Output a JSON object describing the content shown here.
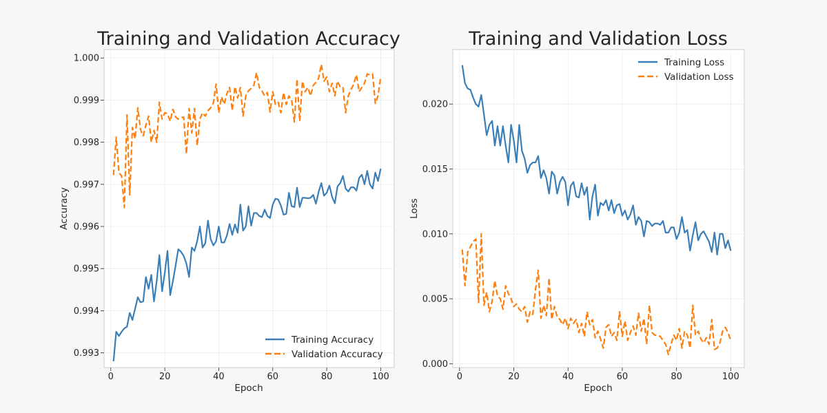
{
  "chart_data": [
    {
      "type": "line",
      "title": "Training and Validation Accuracy",
      "xlabel": "Epoch",
      "ylabel": "Accuracy",
      "xlim": [
        -2.5,
        105
      ],
      "ylim": [
        0.99265,
        1.0002
      ],
      "xticks": [
        0,
        20,
        40,
        60,
        80,
        100
      ],
      "xtick_labels": [
        "0",
        "20",
        "40",
        "60",
        "80",
        "100"
      ],
      "yticks": [
        0.993,
        0.994,
        0.995,
        0.996,
        0.997,
        0.998,
        0.999,
        1.0
      ],
      "ytick_labels": [
        "0.993",
        "0.994",
        "0.995",
        "0.996",
        "0.997",
        "0.998",
        "0.999",
        "1.000"
      ],
      "grid": true,
      "legend_position": "lower-right",
      "series": [
        {
          "name": "Training Accuracy",
          "color": "#3a7eb8",
          "style": "solid",
          "x": [
            1,
            2,
            3,
            4,
            5,
            6,
            7,
            8,
            9,
            10,
            11,
            12,
            13,
            14,
            15,
            16,
            17,
            18,
            19,
            20,
            21,
            22,
            23,
            24,
            25,
            26,
            27,
            28,
            29,
            30,
            31,
            32,
            33,
            34,
            35,
            36,
            37,
            38,
            39,
            40,
            41,
            42,
            43,
            44,
            45,
            46,
            47,
            48,
            49,
            50,
            51,
            52,
            53,
            54,
            55,
            56,
            57,
            58,
            59,
            60,
            61,
            62,
            63,
            64,
            65,
            66,
            67,
            68,
            69,
            70,
            71,
            72,
            73,
            74,
            75,
            76,
            77,
            78,
            79,
            80,
            81,
            82,
            83,
            84,
            85,
            86,
            87,
            88,
            89,
            90,
            91,
            92,
            93,
            94,
            95,
            96,
            97,
            98,
            99,
            100
          ],
          "values": [
            0.9928,
            0.9935,
            0.9934,
            0.9935,
            0.99358,
            0.99362,
            0.99395,
            0.99378,
            0.99405,
            0.99432,
            0.9942,
            0.99422,
            0.9948,
            0.99452,
            0.99485,
            0.99422,
            0.9947,
            0.99532,
            0.99446,
            0.9949,
            0.99542,
            0.99437,
            0.9947,
            0.99507,
            0.99546,
            0.9954,
            0.9953,
            0.99512,
            0.9948,
            0.9955,
            0.99542,
            0.99565,
            0.996,
            0.9955,
            0.9956,
            0.99614,
            0.9957,
            0.99555,
            0.99565,
            0.996,
            0.99562,
            0.99562,
            0.99578,
            0.99606,
            0.9958,
            0.99605,
            0.99585,
            0.99652,
            0.9959,
            0.996,
            0.99648,
            0.99602,
            0.99632,
            0.99632,
            0.99625,
            0.99622,
            0.9964,
            0.99625,
            0.9962,
            0.99652,
            0.99666,
            0.99664,
            0.9965,
            0.99628,
            0.9963,
            0.9968,
            0.99648,
            0.99646,
            0.99692,
            0.99646,
            0.99668,
            0.99668,
            0.99667,
            0.99668,
            0.99675,
            0.99654,
            0.99682,
            0.99703,
            0.99673,
            0.9968,
            0.99697,
            0.9967,
            0.99655,
            0.99695,
            0.99703,
            0.9972,
            0.9969,
            0.99683,
            0.99693,
            0.99693,
            0.99685,
            0.99715,
            0.99723,
            0.997,
            0.99732,
            0.997,
            0.9969,
            0.99728,
            0.99708,
            0.99737
          ]
        },
        {
          "name": "Validation Accuracy",
          "color": "#ff7f0e",
          "style": "dashed",
          "x": [
            1,
            2,
            3,
            4,
            5,
            6,
            7,
            8,
            9,
            10,
            11,
            12,
            13,
            14,
            15,
            16,
            17,
            18,
            19,
            20,
            21,
            22,
            23,
            24,
            25,
            26,
            27,
            28,
            29,
            30,
            31,
            32,
            33,
            34,
            35,
            36,
            37,
            38,
            39,
            40,
            41,
            42,
            43,
            44,
            45,
            46,
            47,
            48,
            49,
            50,
            51,
            52,
            53,
            54,
            55,
            56,
            57,
            58,
            59,
            60,
            61,
            62,
            63,
            64,
            65,
            66,
            67,
            68,
            69,
            70,
            71,
            72,
            73,
            74,
            75,
            76,
            77,
            78,
            79,
            80,
            81,
            82,
            83,
            84,
            85,
            86,
            87,
            88,
            89,
            90,
            91,
            92,
            93,
            94,
            95,
            96,
            97,
            98,
            99,
            100
          ],
          "values": [
            0.99722,
            0.99812,
            0.99728,
            0.9972,
            0.99645,
            0.99865,
            0.99675,
            0.99835,
            0.99808,
            0.99882,
            0.9983,
            0.99815,
            0.9984,
            0.99862,
            0.998,
            0.99828,
            0.998,
            0.99895,
            0.99855,
            0.9987,
            0.99868,
            0.9985,
            0.99878,
            0.9986,
            0.99855,
            0.99858,
            0.9986,
            0.99772,
            0.9988,
            0.99822,
            0.9988,
            0.99792,
            0.99855,
            0.9987,
            0.99862,
            0.99875,
            0.99882,
            0.99893,
            0.99938,
            0.9987,
            0.99908,
            0.9989,
            0.99915,
            0.9993,
            0.99875,
            0.99932,
            0.99905,
            0.9993,
            0.99862,
            0.9991,
            0.99922,
            0.99928,
            0.99935,
            0.99965,
            0.9993,
            0.99922,
            0.9991,
            0.99918,
            0.99872,
            0.9992,
            0.9989,
            0.99895,
            0.9987,
            0.99918,
            0.9989,
            0.9991,
            0.999,
            0.99848,
            0.9995,
            0.9985,
            0.99945,
            0.9992,
            0.9993,
            0.9991,
            0.99935,
            0.99942,
            0.99952,
            0.99985,
            0.99945,
            0.99955,
            0.9992,
            0.9994,
            0.9991,
            0.99945,
            0.9993,
            0.9993,
            0.9987,
            0.9991,
            0.99925,
            0.99938,
            0.9996,
            0.9992,
            0.9993,
            0.9994,
            0.99962,
            0.9996,
            0.99962,
            0.99892,
            0.9991,
            0.99955
          ]
        }
      ]
    },
    {
      "type": "line",
      "title": "Training and Validation Loss",
      "xlabel": "Epoch",
      "ylabel": "Loss",
      "xlim": [
        -2.5,
        105
      ],
      "ylim": [
        -0.0003,
        0.0242
      ],
      "xticks": [
        0,
        20,
        40,
        60,
        80,
        100
      ],
      "xtick_labels": [
        "0",
        "20",
        "40",
        "60",
        "80",
        "100"
      ],
      "yticks": [
        0.0,
        0.005,
        0.01,
        0.015,
        0.02
      ],
      "ytick_labels": [
        "0.000",
        "0.005",
        "0.010",
        "0.015",
        "0.020"
      ],
      "grid": true,
      "legend_position": "upper-right",
      "series": [
        {
          "name": "Training Loss",
          "color": "#3a7eb8",
          "style": "solid",
          "x": [
            1,
            2,
            3,
            4,
            5,
            6,
            7,
            8,
            9,
            10,
            11,
            12,
            13,
            14,
            15,
            16,
            17,
            18,
            19,
            20,
            21,
            22,
            23,
            24,
            25,
            26,
            27,
            28,
            29,
            30,
            31,
            32,
            33,
            34,
            35,
            36,
            37,
            38,
            39,
            40,
            41,
            42,
            43,
            44,
            45,
            46,
            47,
            48,
            49,
            50,
            51,
            52,
            53,
            54,
            55,
            56,
            57,
            58,
            59,
            60,
            61,
            62,
            63,
            64,
            65,
            66,
            67,
            68,
            69,
            70,
            71,
            72,
            73,
            74,
            75,
            76,
            77,
            78,
            79,
            80,
            81,
            82,
            83,
            84,
            85,
            86,
            87,
            88,
            89,
            90,
            91,
            92,
            93,
            94,
            95,
            96,
            97,
            98,
            99,
            100
          ],
          "values": [
            0.023,
            0.0216,
            0.0212,
            0.0211,
            0.0205,
            0.02,
            0.0198,
            0.0207,
            0.0192,
            0.0176,
            0.0184,
            0.0187,
            0.0168,
            0.0183,
            0.0168,
            0.0183,
            0.0168,
            0.0155,
            0.0184,
            0.0172,
            0.0155,
            0.0184,
            0.0164,
            0.0158,
            0.0147,
            0.0153,
            0.0155,
            0.0155,
            0.016,
            0.0143,
            0.0149,
            0.0143,
            0.0131,
            0.0148,
            0.0145,
            0.0131,
            0.014,
            0.0144,
            0.014,
            0.0122,
            0.0137,
            0.014,
            0.0129,
            0.0128,
            0.0139,
            0.013,
            0.0136,
            0.0111,
            0.0129,
            0.0138,
            0.0114,
            0.0124,
            0.0122,
            0.0126,
            0.0118,
            0.0126,
            0.0116,
            0.0122,
            0.0123,
            0.0114,
            0.0118,
            0.0111,
            0.0115,
            0.0122,
            0.0107,
            0.0113,
            0.011,
            0.0098,
            0.011,
            0.0109,
            0.0106,
            0.0108,
            0.0108,
            0.0107,
            0.011,
            0.0101,
            0.0101,
            0.0105,
            0.0105,
            0.0096,
            0.0101,
            0.0113,
            0.0101,
            0.0103,
            0.0087,
            0.0099,
            0.0109,
            0.0095,
            0.01,
            0.0102,
            0.0098,
            0.0094,
            0.0086,
            0.0101,
            0.0084,
            0.01,
            0.01,
            0.0089,
            0.0095,
            0.0087
          ]
        },
        {
          "name": "Validation Loss",
          "color": "#ff7f0e",
          "style": "dashed",
          "x": [
            1,
            2,
            3,
            4,
            5,
            6,
            7,
            8,
            9,
            10,
            11,
            12,
            13,
            14,
            15,
            16,
            17,
            18,
            19,
            20,
            21,
            22,
            23,
            24,
            25,
            26,
            27,
            28,
            29,
            30,
            31,
            32,
            33,
            34,
            35,
            36,
            37,
            38,
            39,
            40,
            41,
            42,
            43,
            44,
            45,
            46,
            47,
            48,
            49,
            50,
            51,
            52,
            53,
            54,
            55,
            56,
            57,
            58,
            59,
            60,
            61,
            62,
            63,
            64,
            65,
            66,
            67,
            68,
            69,
            70,
            71,
            72,
            73,
            74,
            75,
            76,
            77,
            78,
            79,
            80,
            81,
            82,
            83,
            84,
            85,
            86,
            87,
            88,
            89,
            90,
            91,
            92,
            93,
            94,
            95,
            96,
            97,
            98,
            99,
            100
          ],
          "values": [
            0.0088,
            0.006,
            0.0086,
            0.009,
            0.0094,
            0.0096,
            0.0047,
            0.01,
            0.0045,
            0.0055,
            0.004,
            0.0048,
            0.0064,
            0.0052,
            0.005,
            0.0042,
            0.006,
            0.0054,
            0.005,
            0.0044,
            0.0046,
            0.0042,
            0.004,
            0.0044,
            0.0032,
            0.004,
            0.0038,
            0.0057,
            0.0072,
            0.0035,
            0.0045,
            0.0037,
            0.0066,
            0.0034,
            0.0044,
            0.0036,
            0.0034,
            0.003,
            0.0035,
            0.0027,
            0.0035,
            0.0031,
            0.0034,
            0.0024,
            0.0031,
            0.0021,
            0.004,
            0.003,
            0.0034,
            0.002,
            0.0025,
            0.0019,
            0.0012,
            0.0028,
            0.003,
            0.0021,
            0.0024,
            0.0018,
            0.004,
            0.0021,
            0.0033,
            0.0018,
            0.0024,
            0.0029,
            0.0022,
            0.0039,
            0.0025,
            0.0035,
            0.0015,
            0.0045,
            0.0024,
            0.0022,
            0.0022,
            0.0021,
            0.0018,
            0.0015,
            0.0007,
            0.0015,
            0.0022,
            0.0018,
            0.0027,
            0.0012,
            0.0025,
            0.0022,
            0.0012,
            0.0045,
            0.0022,
            0.0025,
            0.0019,
            0.0016,
            0.002,
            0.0015,
            0.0034,
            0.0011,
            0.0012,
            0.0016,
            0.0025,
            0.0028,
            0.0024,
            0.0018
          ]
        }
      ]
    }
  ]
}
